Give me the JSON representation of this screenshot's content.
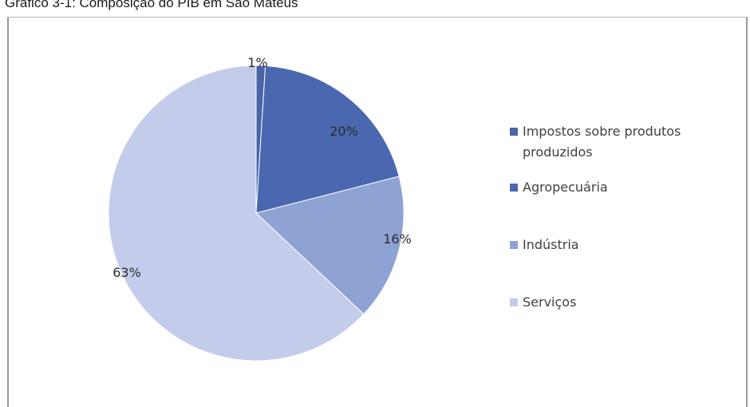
{
  "caption": "Gráfico 3-1: Composição do PIB em São Mateus",
  "chart_data": {
    "type": "pie",
    "title": "",
    "categories": [
      "Impostos sobre produtos produzidos",
      "Agropecuária",
      "Indústria",
      "Serviços"
    ],
    "values": [
      1,
      20,
      16,
      63
    ],
    "labels": [
      "1%",
      "20%",
      "16%",
      "63%"
    ],
    "colors": [
      "#4a64a6",
      "#4a68b0",
      "#8fa2d4",
      "#c3ccea"
    ],
    "legend_position": "right",
    "legend_lines": [
      [
        "Impostos sobre produtos",
        "produzidos"
      ],
      [
        "Agropecuária"
      ],
      [
        "Indústria"
      ],
      [
        "Serviços"
      ]
    ]
  }
}
